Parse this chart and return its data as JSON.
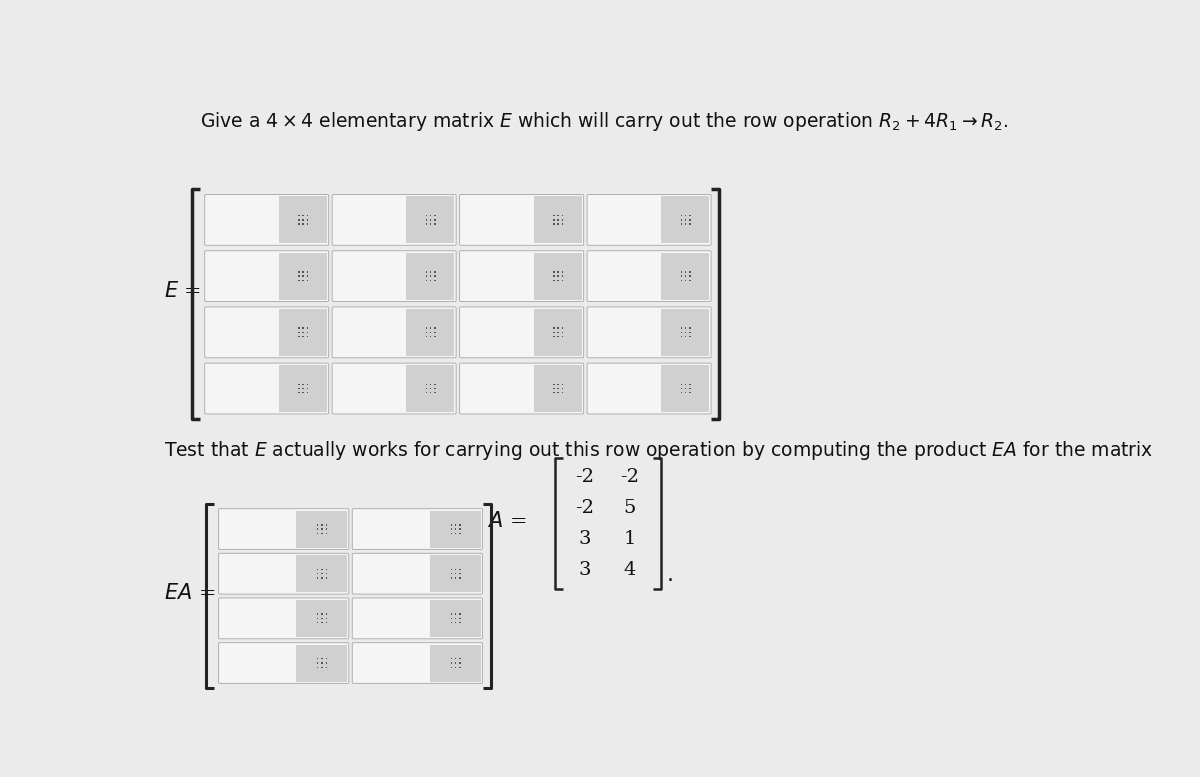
{
  "title_text": "Give a $4 \\times 4$ elementary matrix $E$ which will carry out the row operation $R_2 + 4R_1 \\rightarrow R_2$.",
  "E_label": "$E$ =",
  "test_text": "Test that $E$ actually works for carrying out this row operation by computing the product $EA$ for the matrix",
  "EA_label": "$EA$ =",
  "A_matrix": [
    [
      -2,
      -2
    ],
    [
      -2,
      5
    ],
    [
      3,
      1
    ],
    [
      3,
      4
    ]
  ],
  "bg_color": "#ebebeb",
  "cell_bg_white": "#f5f5f5",
  "cell_bg_gray": "#d0d0d0",
  "border_color": "#b0b0b0",
  "dots_color": "#555555",
  "bracket_color": "#222222",
  "text_color": "#111111"
}
